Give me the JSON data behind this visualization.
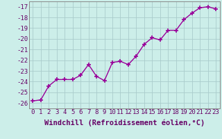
{
  "x": [
    0,
    1,
    2,
    3,
    4,
    5,
    6,
    7,
    8,
    9,
    10,
    11,
    12,
    13,
    14,
    15,
    16,
    17,
    18,
    19,
    20,
    21,
    22,
    23
  ],
  "y": [
    -25.8,
    -25.7,
    -24.4,
    -23.8,
    -23.8,
    -23.8,
    -23.4,
    -22.4,
    -23.5,
    -23.9,
    -22.2,
    -22.1,
    -22.4,
    -21.6,
    -20.5,
    -19.9,
    -20.1,
    -19.2,
    -19.2,
    -18.2,
    -17.6,
    -17.1,
    -17.0,
    -17.2
  ],
  "line_color": "#990099",
  "marker": "+",
  "marker_size": 4,
  "bg_color": "#cceee9",
  "grid_color": "#aacccc",
  "xlabel": "Windchill (Refroidissement éolien,°C)",
  "ylim": [
    -26.5,
    -16.5
  ],
  "xlim": [
    -0.5,
    23.5
  ],
  "yticks": [
    -26,
    -25,
    -24,
    -23,
    -22,
    -21,
    -20,
    -19,
    -18,
    -17
  ],
  "xticks": [
    0,
    1,
    2,
    3,
    4,
    5,
    6,
    7,
    8,
    9,
    10,
    11,
    12,
    13,
    14,
    15,
    16,
    17,
    18,
    19,
    20,
    21,
    22,
    23
  ],
  "tick_color": "#660066",
  "label_color": "#660066",
  "xlabel_fontsize": 7.5,
  "tick_fontsize": 6.5,
  "line_width": 1.0
}
